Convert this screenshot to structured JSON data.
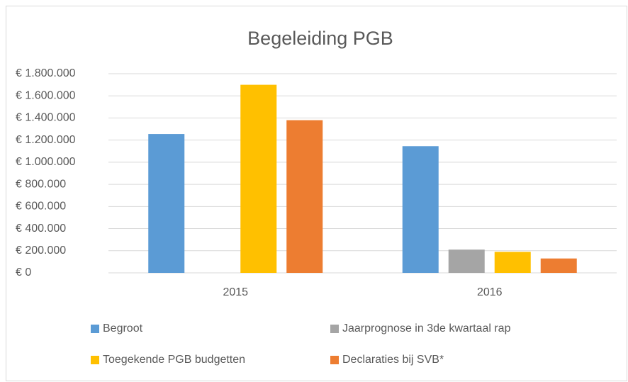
{
  "chart_data": {
    "type": "bar",
    "title": "Begeleiding PGB",
    "categories": [
      "2015",
      "2016"
    ],
    "series": [
      {
        "name": "Begroot",
        "color": "#5b9bd5",
        "values": [
          1255000,
          1145000
        ]
      },
      {
        "name": "Jaarprognose in 3de kwartaal rap",
        "color": "#a5a5a5",
        "values": [
          null,
          210000
        ]
      },
      {
        "name": "Toegekende PGB budgetten",
        "color": "#ffc000",
        "values": [
          1700000,
          190000
        ]
      },
      {
        "name": "Declaraties bij SVB*",
        "color": "#ed7d31",
        "values": [
          1380000,
          130000
        ]
      }
    ],
    "ylim": [
      0,
      1800000
    ],
    "yticks": [
      {
        "value": 0,
        "label": "€ 0"
      },
      {
        "value": 200000,
        "label": "€ 200.000"
      },
      {
        "value": 400000,
        "label": "€ 400.000"
      },
      {
        "value": 600000,
        "label": "€ 600.000"
      },
      {
        "value": 800000,
        "label": "€ 800.000"
      },
      {
        "value": 1000000,
        "label": "€ 1.000.000"
      },
      {
        "value": 1200000,
        "label": "€ 1.200.000"
      },
      {
        "value": 1400000,
        "label": "€ 1.400.000"
      },
      {
        "value": 1600000,
        "label": "€ 1.600.000"
      },
      {
        "value": 1800000,
        "label": "€ 1.800.000"
      }
    ],
    "grid": true,
    "legend": "bottom"
  }
}
